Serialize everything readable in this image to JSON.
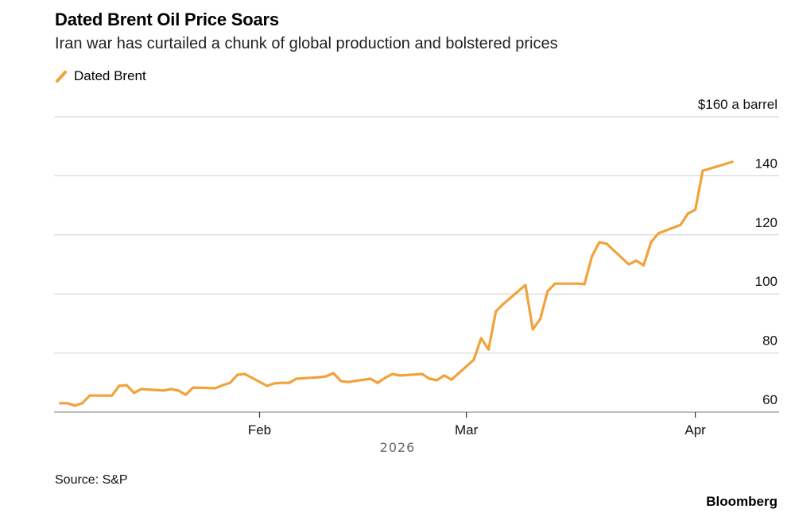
{
  "title": "Dated Brent Oil Price Soars",
  "subtitle": "Iran war has curtailed a chunk of global production and bolstered prices",
  "source": "Source: S&P",
  "brand": "Bloomberg",
  "chart_data": {
    "type": "line",
    "title": "Dated Brent Oil Price Soars",
    "subtitle": "Iran war has curtailed a chunk of global production and bolstered prices",
    "legend_position": "top-left",
    "grid": true,
    "y_unit_label": "$160 a barrel",
    "ylim": [
      60,
      160
    ],
    "y_ticks": [
      60,
      80,
      100,
      120,
      140,
      160
    ],
    "y_tick_labels": [
      "60",
      "80",
      "100",
      "120",
      "140",
      "$160 a barrel"
    ],
    "y_axis_side": "right",
    "x_ticks": [
      "2026-02-01",
      "2026-03-01",
      "2026-04-01"
    ],
    "x_tick_labels": [
      "Feb",
      "Mar",
      "Apr"
    ],
    "x_year_label": "2026",
    "series": [
      {
        "name": "Dated Brent",
        "color": "#F2A23A",
        "x": [
          "2026-01-05",
          "2026-01-06",
          "2026-01-07",
          "2026-01-08",
          "2026-01-09",
          "2026-01-12",
          "2026-01-13",
          "2026-01-14",
          "2026-01-15",
          "2026-01-16",
          "2026-01-19",
          "2026-01-20",
          "2026-01-21",
          "2026-01-22",
          "2026-01-23",
          "2026-01-26",
          "2026-01-27",
          "2026-01-28",
          "2026-01-29",
          "2026-01-30",
          "2026-02-02",
          "2026-02-03",
          "2026-02-04",
          "2026-02-05",
          "2026-02-06",
          "2026-02-09",
          "2026-02-10",
          "2026-02-11",
          "2026-02-12",
          "2026-02-13",
          "2026-02-16",
          "2026-02-17",
          "2026-02-18",
          "2026-02-19",
          "2026-02-20",
          "2026-02-23",
          "2026-02-24",
          "2026-02-25",
          "2026-02-26",
          "2026-02-27",
          "2026-03-02",
          "2026-03-03",
          "2026-03-04",
          "2026-03-05",
          "2026-03-06",
          "2026-03-09",
          "2026-03-10",
          "2026-03-11",
          "2026-03-12",
          "2026-03-13",
          "2026-03-16",
          "2026-03-17",
          "2026-03-18",
          "2026-03-19",
          "2026-03-20",
          "2026-03-23",
          "2026-03-24",
          "2026-03-25",
          "2026-03-26",
          "2026-03-27",
          "2026-03-30",
          "2026-03-31",
          "2026-04-01",
          "2026-04-02",
          "2026-04-06"
        ],
        "values": [
          63.0,
          63.0,
          62.2,
          63.0,
          65.6,
          65.6,
          68.9,
          69.1,
          66.5,
          67.8,
          67.3,
          67.8,
          67.3,
          65.9,
          68.3,
          68.1,
          69.1,
          69.9,
          72.6,
          72.9,
          68.9,
          69.7,
          69.9,
          69.9,
          71.3,
          71.8,
          72.1,
          73.2,
          70.5,
          70.2,
          71.3,
          69.9,
          71.6,
          72.9,
          72.4,
          72.9,
          71.3,
          70.8,
          72.4,
          71.0,
          77.7,
          85.0,
          81.2,
          94.1,
          96.6,
          103.0,
          88.0,
          91.5,
          100.9,
          103.5,
          103.5,
          103.3,
          112.7,
          117.5,
          117.0,
          110.0,
          111.3,
          109.7,
          117.5,
          120.5,
          123.4,
          127.2,
          128.5,
          141.7,
          144.7
        ]
      }
    ]
  }
}
